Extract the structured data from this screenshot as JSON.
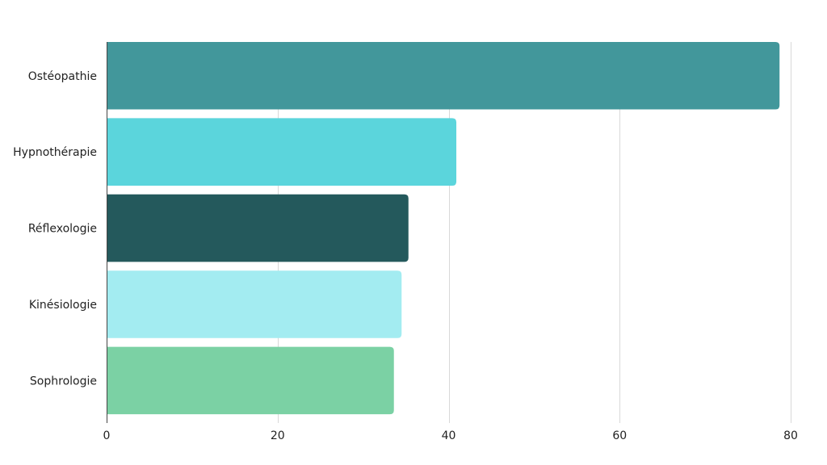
{
  "chart_data": {
    "type": "bar",
    "orientation": "horizontal",
    "categories": [
      "Ostéopathie",
      "Hypnothérapie",
      "Réflexologie",
      "Kinésiologie",
      "Sophrologie"
    ],
    "values": [
      78.7,
      40.9,
      35.3,
      34.5,
      33.6
    ],
    "colors": [
      "#42979b",
      "#5bd5dc",
      "#24595c",
      "#a3ecf1",
      "#7bd1a4"
    ],
    "xlim": [
      0,
      80
    ],
    "xticks": [
      0,
      20,
      40,
      60,
      80
    ],
    "grid": true,
    "legend": "none",
    "title": "",
    "xlabel": "",
    "ylabel": ""
  }
}
